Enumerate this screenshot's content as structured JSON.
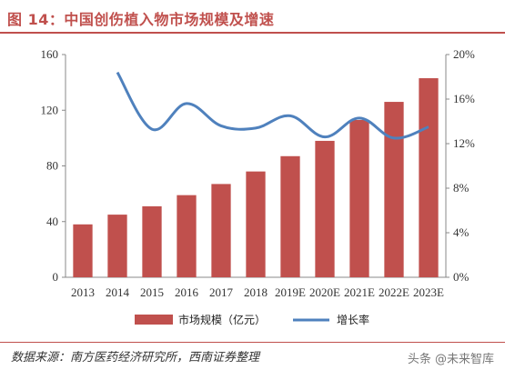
{
  "title": "图 14：中国创伤植入物市场规模及增速",
  "source": "数据来源：南方医药经济研究所，西南证券整理",
  "watermark": "头条 @未来智库",
  "colors": {
    "bar": "#c0504d",
    "line": "#4f81bd",
    "title": "#c0504d"
  },
  "chart_data": {
    "type": "bar",
    "categories": [
      "2013",
      "2014",
      "2015",
      "2016",
      "2017",
      "2018",
      "2019E",
      "2020E",
      "2021E",
      "2022E",
      "2023E"
    ],
    "series": [
      {
        "name": "市场规模（亿元）",
        "kind": "bar",
        "axis": "left",
        "values": [
          38,
          45,
          51,
          59,
          67,
          76,
          87,
          98,
          113,
          126,
          143
        ]
      },
      {
        "name": "增长率",
        "kind": "line",
        "axis": "right",
        "values": [
          null,
          18.4,
          13.3,
          15.6,
          13.6,
          13.4,
          14.5,
          12.6,
          14.3,
          12.5,
          13.5
        ]
      }
    ],
    "y_left": {
      "min": 0,
      "max": 160,
      "ticks": [
        "0",
        "40",
        "80",
        "120",
        "160"
      ]
    },
    "y_right": {
      "min": 0,
      "max": 20,
      "ticks": [
        "0%",
        "4%",
        "8%",
        "12%",
        "16%",
        "20%"
      ]
    },
    "legend_position": "bottom"
  }
}
